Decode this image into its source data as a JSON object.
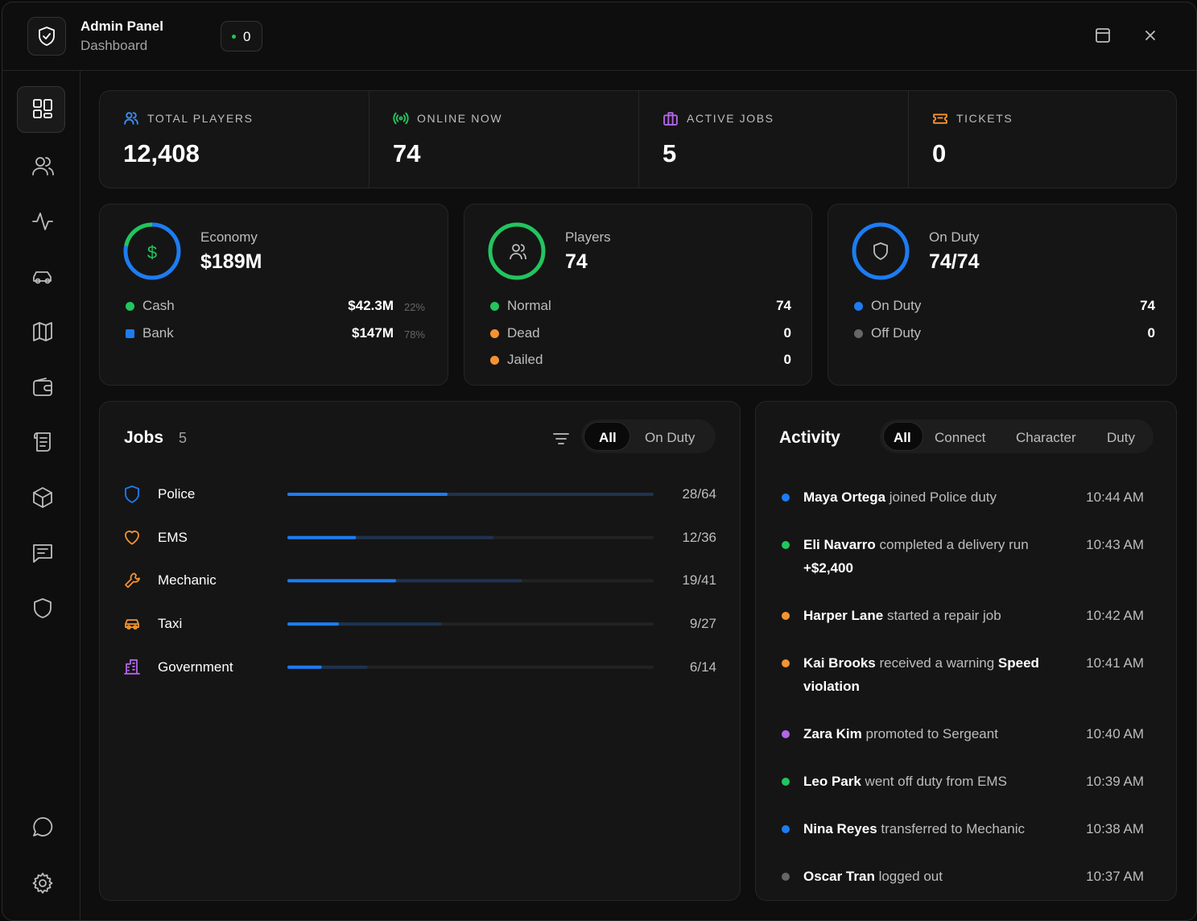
{
  "header": {
    "title": "Admin Panel",
    "subtitle": "Dashboard",
    "badge": "0"
  },
  "stats": [
    {
      "label": "TOTAL PLAYERS",
      "value": "12,408",
      "color": "#3b8cf5"
    },
    {
      "label": "ONLINE NOW",
      "value": "74",
      "color": "#22c55e"
    },
    {
      "label": "ACTIVE JOBS",
      "value": "5",
      "color": "#b366e8"
    },
    {
      "label": "TICKETS",
      "value": "0",
      "color": "#f59331"
    }
  ],
  "economy": {
    "title": "Economy",
    "value": "$189M",
    "items": [
      {
        "label": "Cash",
        "value": "$42.3M",
        "share": 22,
        "share_label": "22%",
        "color": "#22c55e"
      },
      {
        "label": "Bank",
        "value": "$147M",
        "share": 78,
        "share_label": "78%",
        "color": "#1d7cf2"
      }
    ]
  },
  "players": {
    "title": "Players",
    "value": "74",
    "items": [
      {
        "label": "Normal",
        "count": 74,
        "color": "#22c55e"
      },
      {
        "label": "Dead",
        "count": 0,
        "color": "#f59331"
      },
      {
        "label": "Jailed",
        "count": 0,
        "color": "#f59331"
      }
    ]
  },
  "on_duty": {
    "title": "On Duty",
    "value": "74/74",
    "items": [
      {
        "label": "On Duty",
        "count": 74,
        "color": "#1d7cf2"
      },
      {
        "label": "Off Duty",
        "count": 0,
        "color": "#666666"
      }
    ]
  },
  "jobs": {
    "title": "Jobs",
    "count": "5",
    "filters": [
      "All",
      "On Duty"
    ],
    "rows": [
      {
        "name": "Police",
        "active": 28,
        "total": 64,
        "label": "28/64",
        "color": "#1d7cf2"
      },
      {
        "name": "EMS",
        "active": 12,
        "total": 36,
        "label": "12/36",
        "color": "#f59331"
      },
      {
        "name": "Mechanic",
        "active": 19,
        "total": 41,
        "label": "19/41",
        "color": "#f59331"
      },
      {
        "name": "Taxi",
        "active": 9,
        "total": 27,
        "label": "9/27",
        "color": "#f59331"
      },
      {
        "name": "Government",
        "active": 6,
        "total": 14,
        "label": "6/14",
        "color": "#b366e8"
      }
    ]
  },
  "activity": {
    "title": "Activity",
    "tabs": [
      "All",
      "Connect",
      "Character",
      "Duty"
    ],
    "items": [
      {
        "name": "Maya Ortega",
        "action": "joined Police duty",
        "time": "10:44 AM",
        "color": "#1d7cf2"
      },
      {
        "name": "Eli Navarro",
        "action": "completed a delivery run",
        "detail": "+$2,400",
        "time": "10:43 AM",
        "color": "#22c55e"
      },
      {
        "name": "Harper Lane",
        "action": "started a repair job",
        "time": "10:42 AM",
        "color": "#f59331"
      },
      {
        "name": "Kai Brooks",
        "action": "received a warning",
        "detail": "Speed violation",
        "time": "10:41 AM",
        "color": "#f59331"
      },
      {
        "name": "Zara Kim",
        "action": "promoted to Sergeant",
        "time": "10:40 AM",
        "color": "#b366e8"
      },
      {
        "name": "Leo Park",
        "action": "went off duty from EMS",
        "time": "10:39 AM",
        "color": "#22c55e"
      },
      {
        "name": "Nina Reyes",
        "action": "transferred to Mechanic",
        "time": "10:38 AM",
        "color": "#1d7cf2"
      },
      {
        "name": "Oscar Tran",
        "action": "logged out",
        "time": "10:37 AM",
        "color": "#666666"
      }
    ]
  }
}
